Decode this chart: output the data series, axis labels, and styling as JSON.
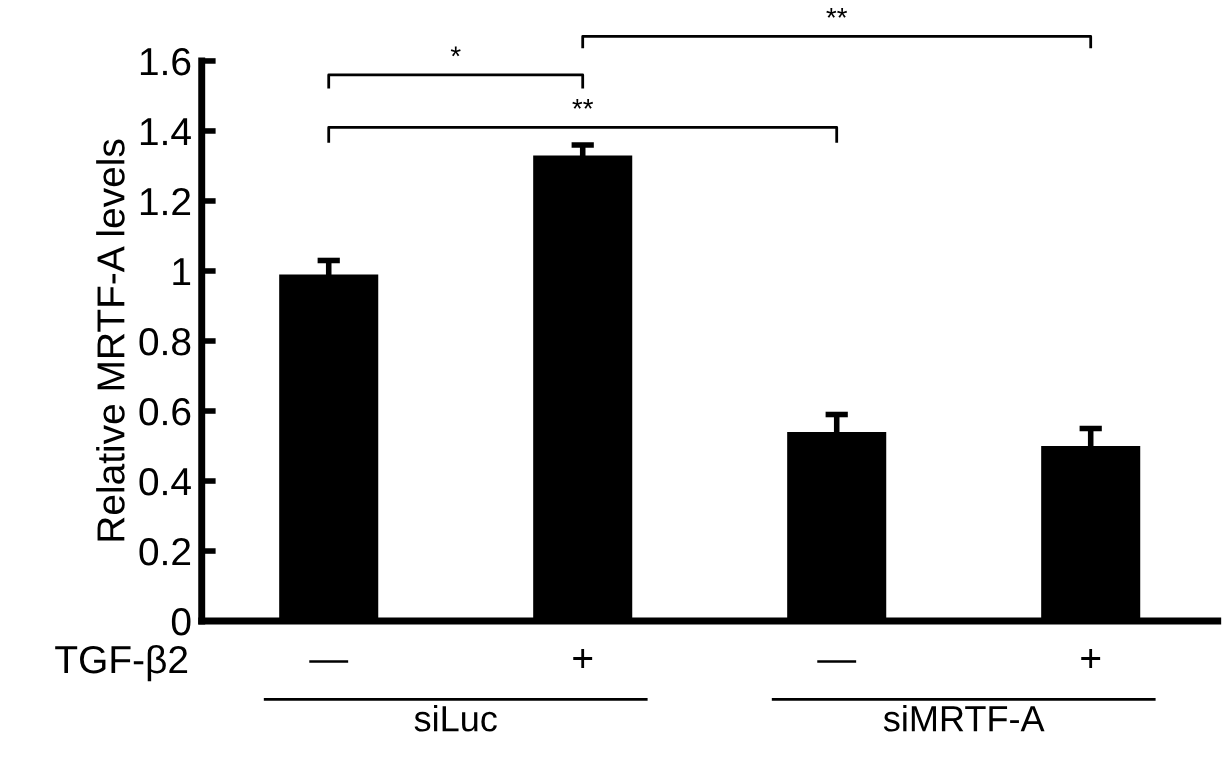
{
  "chart_data": {
    "type": "bar",
    "ylabel": "Relative MRTF-A levels",
    "xlabel": "TGF-β2",
    "categories": [
      "—",
      "+",
      "—",
      "+"
    ],
    "values": [
      0.99,
      1.33,
      0.54,
      0.5
    ],
    "errors": [
      0.04,
      0.03,
      0.05,
      0.05
    ],
    "color": "#000000",
    "ylim": [
      0,
      1.6
    ],
    "yticks": [
      0,
      0.2,
      0.4,
      0.6,
      0.8,
      {
        "value": 1,
        "label": "1"
      },
      1.2,
      1.4,
      1.6
    ],
    "grid": false,
    "annotations": [
      "*",
      "**",
      "**",
      "siLuc",
      "siMRTF-A"
    ]
  }
}
